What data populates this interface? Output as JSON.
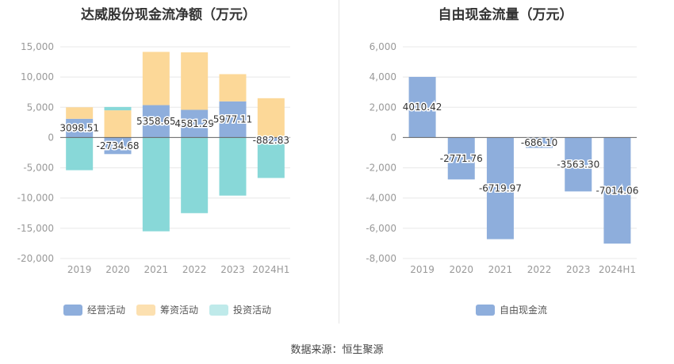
{
  "chart_data": [
    {
      "type": "bar",
      "stacked": true,
      "title": "达威股份现金流净额（万元）",
      "categories": [
        "2019",
        "2020",
        "2021",
        "2022",
        "2023",
        "2024H1"
      ],
      "series": [
        {
          "name": "经营活动",
          "color": "#8eaedc",
          "values": [
            3098.51,
            -2734.68,
            5358.65,
            4581.29,
            5977.11,
            -882.83
          ]
        },
        {
          "name": "筹资活动",
          "color": "#fcd898",
          "values": [
            1900,
            4500,
            8800,
            9500,
            4500,
            6500
          ]
        },
        {
          "name": "投资活动",
          "color": "#88d8d8",
          "values": [
            -5400,
            550,
            -15500,
            -12500,
            -9600,
            -5800
          ]
        }
      ],
      "data_labels": [
        "3098.51",
        "-2734.68",
        "5358.65",
        "4581.29",
        "5977.11",
        "-882.83"
      ],
      "ylim": [
        -20000,
        15000
      ],
      "yticks": [
        "15,000",
        "10,000",
        "5,000",
        "0",
        "-5,000",
        "-10,000",
        "-15,000",
        "-20,000"
      ],
      "grid": true,
      "legend_position": "bottom"
    },
    {
      "type": "bar",
      "title": "自由现金流量（万元）",
      "categories": [
        "2019",
        "2020",
        "2021",
        "2022",
        "2023",
        "2024H1"
      ],
      "series": [
        {
          "name": "自由现金流",
          "color": "#8eaedc",
          "values": [
            4010.42,
            -2771.76,
            -6719.97,
            -686.1,
            -3563.3,
            -7014.06
          ]
        }
      ],
      "data_labels": [
        "4010.42",
        "-2771.76",
        "-6719.97",
        "-686.10",
        "-3563.30",
        "-7014.06"
      ],
      "ylim": [
        -8000,
        6000
      ],
      "yticks": [
        "6,000",
        "4,000",
        "2,000",
        "0",
        "-2,000",
        "-4,000",
        "-6,000",
        "-8,000"
      ],
      "grid": true,
      "legend_position": "bottom"
    }
  ],
  "source": "数据来源：恒生聚源"
}
